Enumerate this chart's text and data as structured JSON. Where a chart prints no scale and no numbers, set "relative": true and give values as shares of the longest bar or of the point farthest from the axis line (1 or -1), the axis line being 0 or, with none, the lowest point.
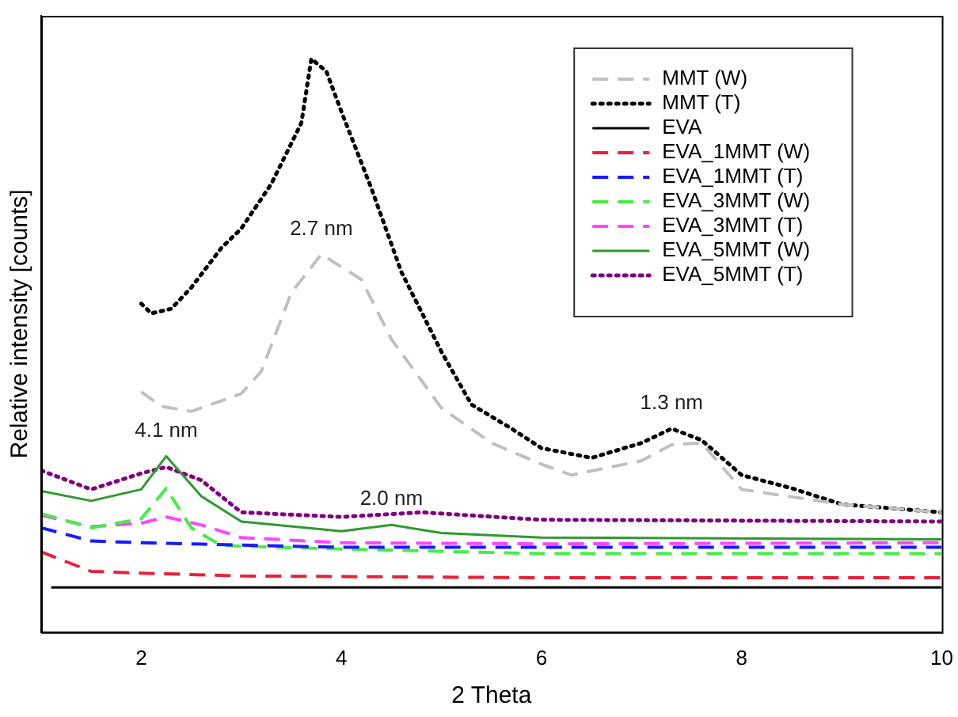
{
  "chart_data": {
    "type": "line",
    "relative": true,
    "xlabel": "2 Theta",
    "ylabel": "Relative intensity [counts]",
    "xlim": [
      1,
      10
    ],
    "xticks": [
      2,
      4,
      6,
      8,
      10
    ],
    "grid": false,
    "legend": "top right",
    "marker": "none",
    "annotations": [
      {
        "text": "2.7 nm",
        "x": 3.8,
        "y": 0.659
      },
      {
        "text": "1.3 nm",
        "x": 7.3,
        "y": 0.355
      },
      {
        "text": "4.1 nm",
        "x": 2.25,
        "y": 0.307
      },
      {
        "text": "2.0 nm",
        "x": 4.5,
        "y": 0.187
      }
    ],
    "series": [
      {
        "name": "MMT (W)",
        "color": "#c0c0c0",
        "line_style": "dashed",
        "x": [
          2,
          2.2,
          2.5,
          3,
          3.2,
          3.5,
          3.8,
          4.2,
          4.5,
          5,
          5.5,
          6,
          6.3,
          7,
          7.3,
          7.6,
          8,
          9,
          10
        ],
        "values": [
          0.419,
          0.394,
          0.385,
          0.416,
          0.455,
          0.592,
          0.659,
          0.615,
          0.511,
          0.391,
          0.33,
          0.293,
          0.274,
          0.299,
          0.327,
          0.33,
          0.249,
          0.223,
          0.209
        ]
      },
      {
        "name": "MMT (T)",
        "color": "#000000",
        "line_style": "dotted",
        "x": [
          2,
          2.1,
          2.3,
          2.5,
          2.8,
          3,
          3.3,
          3.6,
          3.7,
          3.85,
          4,
          4.3,
          4.6,
          5,
          5.3,
          5.7,
          6,
          6.5,
          7,
          7.3,
          7.6,
          8,
          8.5,
          9,
          10
        ],
        "values": [
          0.573,
          0.556,
          0.564,
          0.601,
          0.67,
          0.704,
          0.782,
          0.888,
          1,
          0.978,
          0.908,
          0.774,
          0.628,
          0.489,
          0.397,
          0.355,
          0.321,
          0.304,
          0.33,
          0.355,
          0.335,
          0.274,
          0.251,
          0.223,
          0.209
        ]
      },
      {
        "name": "EVA",
        "color": "#000000",
        "line_style": "solid",
        "x": [
          1.1,
          4,
          7,
          10
        ],
        "values": [
          0.078,
          0.078,
          0.078,
          0.078
        ]
      },
      {
        "name": "EVA_1MMT (W)",
        "color": "#e8203a",
        "line_style": "dashed",
        "x": [
          1,
          1.5,
          2,
          3,
          6,
          10
        ],
        "values": [
          0.14,
          0.106,
          0.103,
          0.098,
          0.095,
          0.095
        ]
      },
      {
        "name": "EVA_1MMT (T)",
        "color": "#1a1aff",
        "line_style": "dashed",
        "x": [
          1,
          1.5,
          2,
          4,
          10
        ],
        "values": [
          0.182,
          0.159,
          0.156,
          0.148,
          0.148
        ]
      },
      {
        "name": "EVA_3MMT (W)",
        "color": "#44ee44",
        "line_style": "dashed",
        "x": [
          1,
          1.5,
          2,
          2.25,
          2.5,
          2.8,
          4,
          6,
          10
        ],
        "values": [
          0.207,
          0.182,
          0.198,
          0.251,
          0.182,
          0.151,
          0.145,
          0.137,
          0.137
        ]
      },
      {
        "name": "EVA_3MMT (T)",
        "color": "#ff44ff",
        "line_style": "dashed",
        "x": [
          1,
          1.5,
          2,
          2.25,
          2.6,
          3,
          4,
          6,
          10
        ],
        "values": [
          0.204,
          0.184,
          0.19,
          0.201,
          0.187,
          0.165,
          0.156,
          0.154,
          0.156
        ]
      },
      {
        "name": "EVA_5MMT (W)",
        "color": "#2e9a2e",
        "line_style": "solid",
        "x": [
          1,
          1.5,
          2,
          2.25,
          2.6,
          3,
          4,
          4.5,
          5,
          6,
          10
        ],
        "values": [
          0.246,
          0.229,
          0.249,
          0.307,
          0.237,
          0.193,
          0.176,
          0.187,
          0.173,
          0.165,
          0.162
        ]
      },
      {
        "name": "EVA_5MMT (T)",
        "color": "#800080",
        "line_style": "dotted",
        "x": [
          1,
          1.5,
          2,
          2.25,
          2.6,
          3,
          4,
          4.8,
          6,
          10
        ],
        "values": [
          0.282,
          0.249,
          0.277,
          0.288,
          0.265,
          0.209,
          0.201,
          0.209,
          0.196,
          0.193
        ]
      }
    ]
  }
}
